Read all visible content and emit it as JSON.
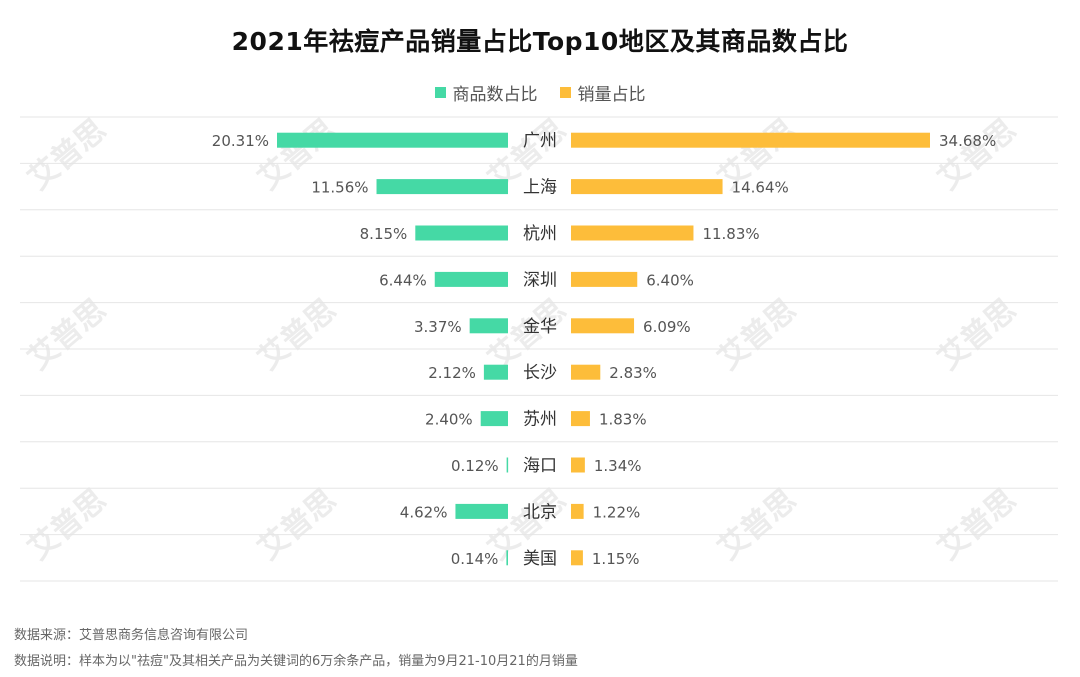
{
  "title": "2021年祛痘产品销量占比Top10地区及其商品数占比",
  "legend": {
    "left_label": "商品数占比",
    "right_label": "销量占比"
  },
  "colors": {
    "left": "#45D9A5",
    "right": "#FDBD3A",
    "grid": "#e6e6e6",
    "label": "#555555"
  },
  "watermark_text": "艾普思",
  "footer": {
    "source": "数据来源：艾普思商务信息咨询有限公司",
    "note": "数据说明：样本为以\"祛痘\"及其相关产品为关键词的6万余条产品，销量为9月21-10月21的月销量"
  },
  "chart_data": {
    "type": "bar",
    "orientation": "diverging-horizontal",
    "title": "2021年祛痘产品销量占比Top10地区及其商品数占比",
    "categories": [
      "广州",
      "上海",
      "杭州",
      "深圳",
      "金华",
      "长沙",
      "苏州",
      "海口",
      "北京",
      "美国"
    ],
    "series": [
      {
        "name": "商品数占比",
        "side": "left",
        "values": [
          20.31,
          11.56,
          8.15,
          6.44,
          3.37,
          2.12,
          2.4,
          0.12,
          4.62,
          0.14
        ],
        "labels": [
          "20.31%",
          "11.56%",
          "8.15%",
          "6.44%",
          "3.37%",
          "2.12%",
          "2.40%",
          "0.12%",
          "4.62%",
          "0.14%"
        ]
      },
      {
        "name": "销量占比",
        "side": "right",
        "values": [
          34.68,
          14.64,
          11.83,
          6.4,
          6.09,
          2.83,
          1.83,
          1.34,
          1.22,
          1.15
        ],
        "labels": [
          "34.68%",
          "14.64%",
          "11.83%",
          "6.40%",
          "6.09%",
          "2.83%",
          "1.83%",
          "1.34%",
          "1.22%",
          "1.15%"
        ]
      }
    ],
    "unit": "%"
  }
}
